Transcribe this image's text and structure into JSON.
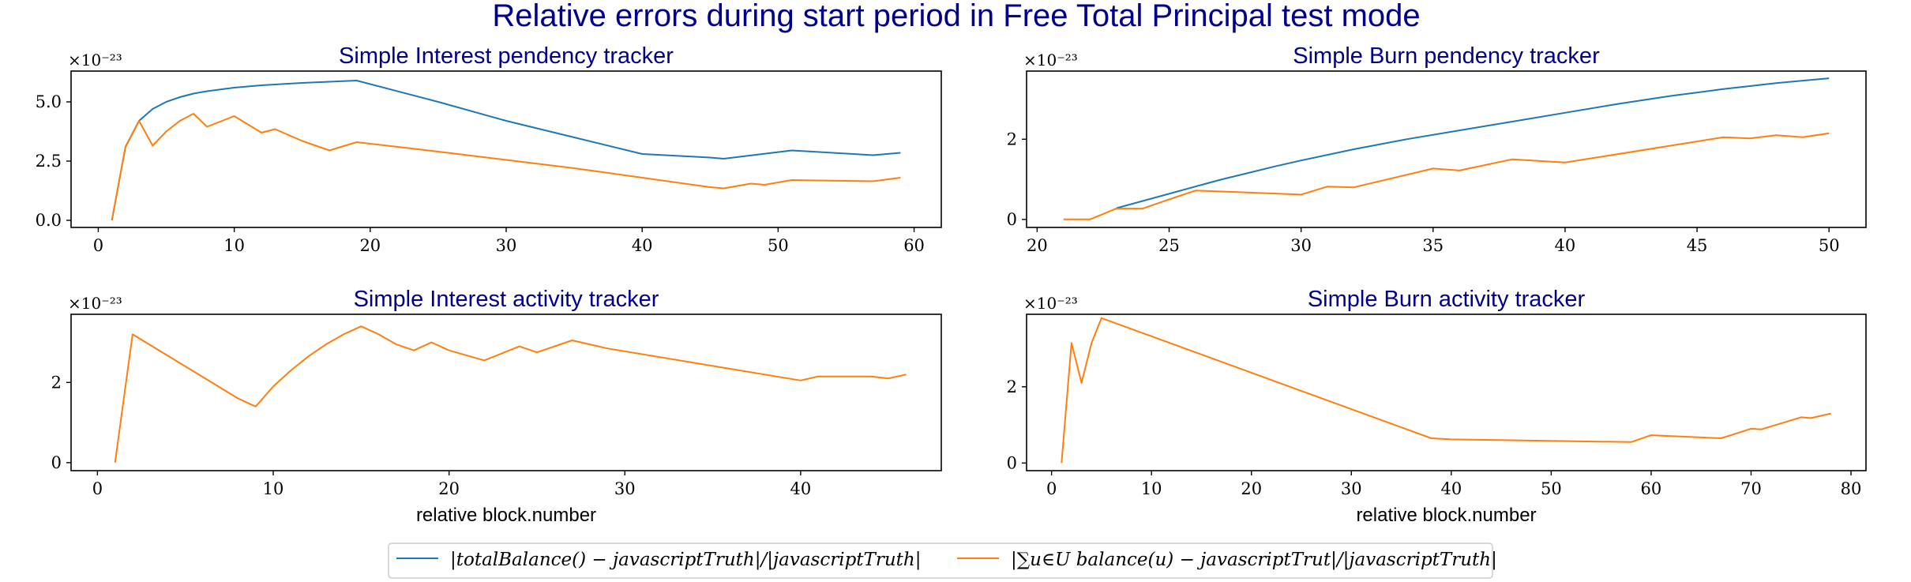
{
  "figure": {
    "title": "Relative errors during start period in Free Total Principal test mode",
    "title_color": "#00008b",
    "series_colors": {
      "total_balance": "#1f77b4",
      "sum_balances": "#ff7f0e"
    },
    "legend": {
      "placement": "bottom-center",
      "entries": [
        "|totalBalance() − javascriptTruth|/|javascriptTruth|",
        "|∑u∈U balance(u) − javascriptTrut|/|javascriptTruth|"
      ]
    }
  },
  "chart_data": [
    {
      "type": "line",
      "title": "Simple Interest pendency tracker",
      "xlabel": "",
      "ylabel": "",
      "scale_label": "×10⁻²³",
      "xlim": [
        -2,
        62
      ],
      "ylim": [
        -0.3,
        6.3
      ],
      "xticks": [
        0,
        10,
        20,
        30,
        40,
        50,
        60
      ],
      "yticks": [
        0.0,
        2.5,
        5.0
      ],
      "ytick_labels": [
        "0.0",
        "2.5",
        "5.0"
      ],
      "series": [
        {
          "key": "total_balance",
          "x": [
            1,
            2,
            3,
            4,
            5,
            6,
            7,
            8,
            10,
            12,
            15,
            17,
            19,
            25,
            30,
            35,
            40,
            45,
            46,
            51,
            57,
            59
          ],
          "y": [
            0.0,
            3.1,
            4.2,
            4.7,
            5.0,
            5.2,
            5.35,
            5.45,
            5.6,
            5.7,
            5.8,
            5.85,
            5.9,
            5.0,
            4.2,
            3.5,
            2.8,
            2.65,
            2.6,
            2.95,
            2.75,
            2.85
          ]
        },
        {
          "key": "sum_balances",
          "x": [
            1,
            2,
            3,
            4,
            5,
            6,
            7,
            8,
            10,
            12,
            13,
            15,
            17,
            19,
            25,
            30,
            35,
            40,
            45,
            46,
            48,
            49,
            51,
            57,
            59
          ],
          "y": [
            0.0,
            3.1,
            4.2,
            3.15,
            3.75,
            4.2,
            4.5,
            3.95,
            4.4,
            3.7,
            3.85,
            3.35,
            2.95,
            3.3,
            2.9,
            2.55,
            2.2,
            1.8,
            1.4,
            1.35,
            1.55,
            1.5,
            1.7,
            1.65,
            1.8
          ]
        }
      ]
    },
    {
      "type": "line",
      "title": "Simple Burn pendency tracker",
      "xlabel": "",
      "ylabel": "",
      "scale_label": "×10⁻²³",
      "xlim": [
        19.6,
        51.4
      ],
      "ylim": [
        -0.2,
        3.7
      ],
      "xticks": [
        20,
        25,
        30,
        35,
        40,
        45,
        50
      ],
      "yticks": [
        0,
        2
      ],
      "ytick_labels": [
        "0",
        "2"
      ],
      "series": [
        {
          "key": "total_balance",
          "x": [
            23,
            24,
            25,
            26,
            27,
            28,
            29,
            30,
            32,
            34,
            36,
            38,
            40,
            42,
            44,
            46,
            48,
            50
          ],
          "y": [
            0.28,
            0.46,
            0.64,
            0.82,
            1.0,
            1.16,
            1.32,
            1.47,
            1.75,
            2.0,
            2.22,
            2.44,
            2.66,
            2.88,
            3.08,
            3.25,
            3.4,
            3.52
          ]
        },
        {
          "key": "sum_balances",
          "x": [
            21,
            22,
            23,
            24,
            25,
            26,
            30,
            31,
            32,
            35,
            36,
            38,
            40,
            46,
            47,
            48,
            49,
            50
          ],
          "y": [
            0.0,
            0.0,
            0.27,
            0.27,
            0.5,
            0.72,
            0.62,
            0.82,
            0.8,
            1.27,
            1.22,
            1.5,
            1.42,
            2.05,
            2.02,
            2.1,
            2.05,
            2.15
          ]
        }
      ]
    },
    {
      "type": "line",
      "title": "Simple Interest activity tracker",
      "xlabel": "relative block.number",
      "ylabel": "",
      "scale_label": "×10⁻²³",
      "xlim": [
        -1.5,
        48
      ],
      "ylim": [
        -0.2,
        3.7
      ],
      "xticks": [
        0,
        10,
        20,
        30,
        40
      ],
      "yticks": [
        0,
        2
      ],
      "ytick_labels": [
        "0",
        "2"
      ],
      "series": [
        {
          "key": "sum_balances",
          "x": [
            1,
            2,
            8,
            9,
            10,
            11,
            12,
            13,
            14,
            15,
            16,
            17,
            18,
            19,
            20,
            22,
            24,
            25,
            27,
            29,
            40,
            41,
            44,
            45,
            46
          ],
          "y": [
            0.0,
            3.2,
            1.6,
            1.4,
            1.9,
            2.3,
            2.65,
            2.95,
            3.2,
            3.4,
            3.2,
            2.95,
            2.8,
            3.0,
            2.8,
            2.55,
            2.9,
            2.75,
            3.05,
            2.85,
            2.05,
            2.15,
            2.15,
            2.1,
            2.2
          ]
        }
      ]
    },
    {
      "type": "line",
      "title": "Simple Burn activity tracker",
      "xlabel": "relative block.number",
      "ylabel": "",
      "scale_label": "×10⁻²³",
      "xlim": [
        -2.5,
        81.5
      ],
      "ylim": [
        -0.2,
        3.9
      ],
      "xticks": [
        0,
        10,
        20,
        30,
        40,
        50,
        60,
        70,
        80
      ],
      "yticks": [
        0,
        2
      ],
      "ytick_labels": [
        "0",
        "2"
      ],
      "series": [
        {
          "key": "sum_balances",
          "x": [
            1,
            2,
            3,
            4,
            5,
            38,
            40,
            58,
            60,
            67,
            70,
            71,
            75,
            76,
            78
          ],
          "y": [
            0.0,
            3.15,
            2.1,
            3.15,
            3.8,
            0.65,
            0.62,
            0.55,
            0.73,
            0.65,
            0.9,
            0.88,
            1.2,
            1.18,
            1.3
          ]
        }
      ]
    }
  ]
}
